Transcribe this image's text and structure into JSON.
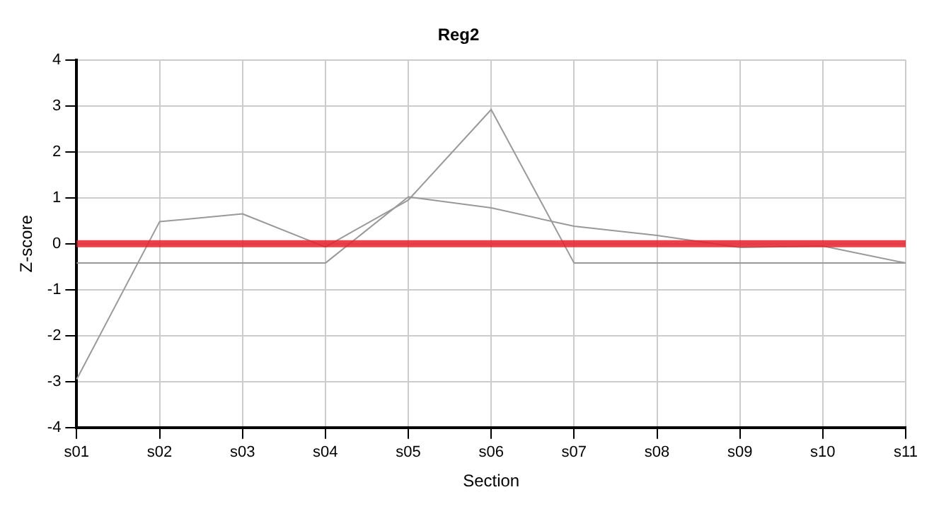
{
  "chart_data": {
    "type": "line",
    "title": "Reg2",
    "xlabel": "Section",
    "ylabel": "Z-score",
    "categories": [
      "s01",
      "s02",
      "s03",
      "s04",
      "s05",
      "s06",
      "s07",
      "s08",
      "s09",
      "s10",
      "s11"
    ],
    "series": [
      {
        "color": "#999999",
        "values": [
          -2.95,
          0.48,
          0.65,
          -0.07,
          0.95,
          2.92,
          -0.42,
          -0.42,
          -0.42,
          -0.42,
          -0.42
        ]
      },
      {
        "color": "#999999",
        "values": [
          -0.42,
          -0.42,
          -0.42,
          -0.42,
          1.02,
          0.78,
          0.38,
          0.18,
          -0.08,
          -0.05,
          -0.42
        ]
      }
    ],
    "ylim": [
      -4,
      4
    ],
    "yticks": [
      -4,
      -3,
      -2,
      -1,
      0,
      1,
      2,
      3,
      4
    ],
    "grid": true,
    "marker": "none",
    "line_style": "solid",
    "legend": false,
    "ref_lines": [
      {
        "axis": "y",
        "value": 0,
        "color": "#e8202a"
      }
    ]
  }
}
